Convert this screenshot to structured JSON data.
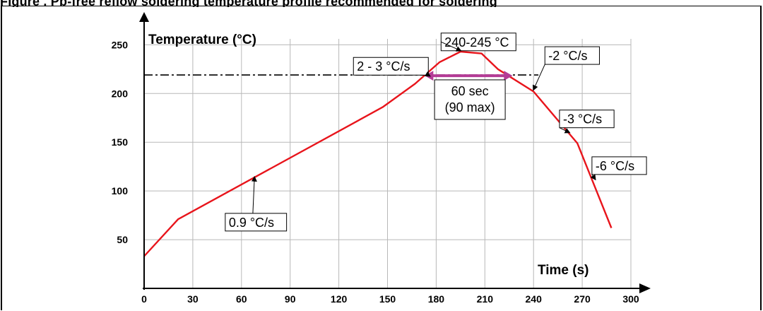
{
  "figure": {
    "caption": "Figure          . Pb-free reflow soldering temperature profile recommended for soldering"
  },
  "chart_data": {
    "type": "line",
    "title": "",
    "ylabel": "Temperature (°C)",
    "xlabel": "Time (s)",
    "xlim": [
      0,
      300
    ],
    "ylim": [
      0,
      260
    ],
    "x_ticks": [
      0,
      30,
      60,
      90,
      120,
      150,
      180,
      210,
      240,
      270,
      300
    ],
    "y_ticks": [
      50,
      100,
      150,
      200,
      250
    ],
    "grid": true,
    "series": [
      {
        "name": "",
        "color": "#e8141b",
        "x": [
          0,
          21,
          147,
          167,
          182,
          195,
          208,
          218,
          240,
          267,
          288
        ],
        "y": [
          33,
          71,
          186,
          210,
          232,
          243,
          241,
          225,
          202,
          149,
          62
        ]
      }
    ],
    "reference_line": {
      "y": 219,
      "style": "dash-dot",
      "color": "#000000"
    },
    "span_marker": {
      "x_start": 173,
      "x_end": 227,
      "y": 219,
      "color": "#b43c96"
    },
    "annotations": [
      {
        "text": "240-245 °C",
        "box_x": 183,
        "box_y": 262,
        "arrow_x": 195,
        "arrow_y": 244
      },
      {
        "text": "2 - 3 °C/s",
        "box_x": 129,
        "box_y": 237,
        "arrow_x": 176,
        "arrow_y": 218
      },
      {
        "text": "-2 °C/s",
        "box_x": 247,
        "box_y": 248,
        "arrow_x": 240,
        "arrow_y": 204
      },
      {
        "text": "-3 °C/s",
        "box_x": 256,
        "box_y": 183,
        "arrow_x": 262,
        "arrow_y": 160
      },
      {
        "text": "-6 °C/s",
        "box_x": 276,
        "box_y": 135,
        "arrow_x": 278,
        "arrow_y": 112
      },
      {
        "text": "0.9 °C/s",
        "box_x": 50,
        "box_y": 77,
        "arrow_x": 68,
        "arrow_y": 114
      }
    ],
    "span_label": [
      "60 sec",
      "(90 max)"
    ]
  }
}
